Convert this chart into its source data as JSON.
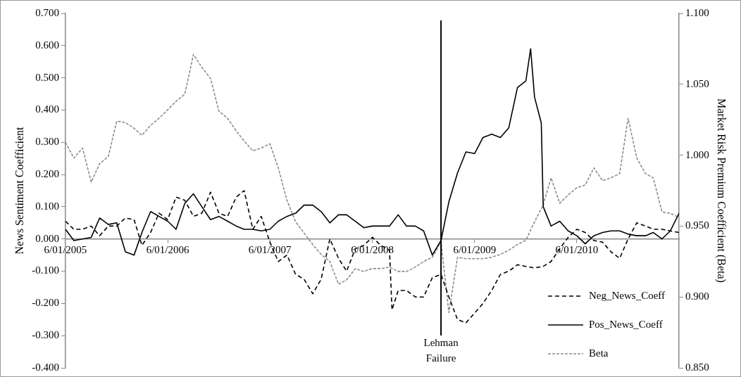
{
  "chart_data": {
    "type": "line",
    "ylabel": "News Sentiment Coefficient",
    "y2label": "Market Risk Premium Coefficient (Beta)",
    "xlim": [
      "2005-06-01",
      "2011-06-01"
    ],
    "xticks": [
      {
        "value": "2005-06-01",
        "label": "6/01/2005"
      },
      {
        "value": "2006-06-01",
        "label": "6/01/2006"
      },
      {
        "value": "2007-06-01",
        "label": "6/01/2007"
      },
      {
        "value": "2008-06-01",
        "label": "6/01/2008"
      },
      {
        "value": "2009-06-01",
        "label": "6/01/2009"
      },
      {
        "value": "2010-06-01",
        "label": "6/01/2010"
      }
    ],
    "ylim": [
      -0.4,
      0.7
    ],
    "yticks": [
      {
        "value": -0.4,
        "label": "-0.400"
      },
      {
        "value": -0.3,
        "label": "-0.300"
      },
      {
        "value": -0.2,
        "label": "-0.200"
      },
      {
        "value": -0.1,
        "label": "-0.100"
      },
      {
        "value": 0,
        "label": "0.000"
      },
      {
        "value": 0.1,
        "label": "0.100"
      },
      {
        "value": 0.2,
        "label": "0.200"
      },
      {
        "value": 0.3,
        "label": "0.300"
      },
      {
        "value": 0.4,
        "label": "0.400"
      },
      {
        "value": 0.5,
        "label": "0.500"
      },
      {
        "value": 0.6,
        "label": "0.600"
      },
      {
        "value": 0.7,
        "label": "0.700"
      }
    ],
    "y2lim": [
      0.85,
      1.1
    ],
    "y2ticks": [
      {
        "value": 0.85,
        "label": "0.850"
      },
      {
        "value": 0.9,
        "label": "0.900"
      },
      {
        "value": 0.95,
        "label": "0.950"
      },
      {
        "value": 1.0,
        "label": "1.000"
      },
      {
        "value": 1.05,
        "label": "1.050"
      },
      {
        "value": 1.1,
        "label": "1.100"
      }
    ],
    "legend": "bottom right",
    "ref_lines": [
      {
        "axis": "x",
        "value": "2009-02-01",
        "label": "Lehman Failure",
        "color": "#000000"
      }
    ],
    "series": [
      {
        "name": "Neg_News_Coeff",
        "color": "#000000",
        "line_style": "dashed",
        "x": [
          "2005-06",
          "2005-07",
          "2005-08",
          "2005-09",
          "2005-10",
          "2005-11",
          "2005-12",
          "2006-01",
          "2006-02",
          "2006-03",
          "2006-04",
          "2006-05",
          "2006-06",
          "2006-07",
          "2006-08",
          "2006-09",
          "2006-10",
          "2006-11",
          "2006-12",
          "2007-01",
          "2007-02",
          "2007-03",
          "2007-04",
          "2007-05",
          "2007-06",
          "2007-07",
          "2007-08",
          "2007-09",
          "2007-10",
          "2007-11",
          "2007-12",
          "2008-01",
          "2008-02",
          "2008-03",
          "2008-04",
          "2008-05",
          "2008-06",
          "2008-07",
          "2008-08",
          "2008-08-10",
          "2008-09",
          "2008-10",
          "2008-11",
          "2008-12",
          "2009-01",
          "2009-02",
          "2009-03",
          "2009-04",
          "2009-05",
          "2009-06",
          "2009-07",
          "2009-08",
          "2009-09",
          "2009-10",
          "2009-11",
          "2009-12",
          "2010-01",
          "2010-02",
          "2010-03",
          "2010-04",
          "2010-05",
          "2010-06",
          "2010-07",
          "2010-08",
          "2010-09",
          "2010-10",
          "2010-11",
          "2010-12",
          "2011-01",
          "2011-02",
          "2011-03",
          "2011-04",
          "2011-05",
          "2011-06"
        ],
        "values": [
          0.055,
          0.03,
          0.03,
          0.04,
          0.01,
          0.04,
          0.04,
          0.065,
          0.06,
          -0.02,
          0.02,
          0.08,
          0.06,
          0.13,
          0.12,
          0.07,
          0.08,
          0.145,
          0.08,
          0.07,
          0.13,
          0.15,
          0.03,
          0.07,
          -0.01,
          -0.07,
          -0.05,
          -0.11,
          -0.125,
          -0.17,
          -0.125,
          0.0,
          -0.06,
          -0.1,
          -0.03,
          -0.02,
          0.005,
          -0.02,
          -0.035,
          -0.22,
          -0.16,
          -0.16,
          -0.18,
          -0.18,
          -0.12,
          -0.11,
          -0.18,
          -0.25,
          -0.26,
          -0.23,
          -0.2,
          -0.16,
          -0.11,
          -0.1,
          -0.08,
          -0.085,
          -0.09,
          -0.085,
          -0.07,
          -0.03,
          0.005,
          0.03,
          0.02,
          -0.005,
          -0.01,
          -0.04,
          -0.06,
          0.0,
          0.05,
          0.04,
          0.03,
          0.03,
          0.025,
          0.02
        ]
      },
      {
        "name": "Pos_News_Coeff",
        "color": "#000000",
        "line_style": "solid",
        "x": [
          "2005-06",
          "2005-07",
          "2005-08",
          "2005-09",
          "2005-10",
          "2005-11",
          "2005-12",
          "2006-01",
          "2006-02",
          "2006-03",
          "2006-04",
          "2006-05",
          "2006-06",
          "2006-07",
          "2006-08",
          "2006-09",
          "2006-10",
          "2006-11",
          "2006-12",
          "2007-01",
          "2007-02",
          "2007-03",
          "2007-04",
          "2007-05",
          "2007-06",
          "2007-07",
          "2007-08",
          "2007-09",
          "2007-10",
          "2007-11",
          "2007-12",
          "2008-01",
          "2008-02",
          "2008-03",
          "2008-04",
          "2008-05",
          "2008-06",
          "2008-07",
          "2008-08",
          "2008-09",
          "2008-10",
          "2008-11",
          "2008-12",
          "2009-01",
          "2009-02",
          "2009-03",
          "2009-04",
          "2009-05",
          "2009-06",
          "2009-07",
          "2009-08",
          "2009-09",
          "2009-10",
          "2009-11",
          "2009-12",
          "2009-12-18",
          "2010-01",
          "2010-01-25",
          "2010-02",
          "2010-03",
          "2010-04",
          "2010-05",
          "2010-06",
          "2010-07",
          "2010-08",
          "2010-09",
          "2010-10",
          "2010-11",
          "2010-12",
          "2011-01",
          "2011-02",
          "2011-03",
          "2011-04",
          "2011-05",
          "2011-06"
        ],
        "values": [
          0.03,
          -0.005,
          0.0,
          0.005,
          0.065,
          0.045,
          0.05,
          -0.04,
          -0.05,
          0.02,
          0.085,
          0.07,
          0.055,
          0.03,
          0.11,
          0.14,
          0.1,
          0.06,
          0.07,
          0.055,
          0.04,
          0.03,
          0.03,
          0.025,
          0.03,
          0.055,
          0.07,
          0.08,
          0.105,
          0.105,
          0.085,
          0.05,
          0.075,
          0.075,
          0.055,
          0.035,
          0.04,
          0.04,
          0.04,
          0.075,
          0.04,
          0.04,
          0.025,
          -0.05,
          -0.005,
          0.115,
          0.205,
          0.27,
          0.265,
          0.315,
          0.325,
          0.315,
          0.345,
          0.47,
          0.49,
          0.59,
          0.44,
          0.36,
          0.1,
          0.04,
          0.055,
          0.025,
          0.01,
          -0.015,
          0.01,
          0.02,
          0.025,
          0.025,
          0.015,
          0.01,
          0.01,
          0.02,
          0.0,
          0.025,
          0.08
        ]
      },
      {
        "name": "Beta",
        "color": "#8c8c8c",
        "line_style": "dashed",
        "axis": "y2",
        "x": [
          "2005-06",
          "2005-07",
          "2005-08",
          "2005-09",
          "2005-10",
          "2005-11",
          "2005-12",
          "2006-01",
          "2006-02",
          "2006-03",
          "2006-04",
          "2006-05",
          "2006-06",
          "2006-07",
          "2006-08",
          "2006-09",
          "2006-10",
          "2006-11",
          "2006-12",
          "2007-01",
          "2007-02",
          "2007-03",
          "2007-04",
          "2007-05",
          "2007-06",
          "2007-07",
          "2007-08",
          "2007-09",
          "2007-10",
          "2007-11",
          "2007-12",
          "2008-01",
          "2008-02",
          "2008-03",
          "2008-04",
          "2008-05",
          "2008-06",
          "2008-07",
          "2008-08",
          "2008-09",
          "2008-10",
          "2008-11",
          "2008-12",
          "2009-01",
          "2009-02",
          "2009-03",
          "2009-04",
          "2009-05",
          "2009-06",
          "2009-07",
          "2009-08",
          "2009-09",
          "2009-10",
          "2009-11",
          "2009-12",
          "2010-01",
          "2010-02",
          "2010-03",
          "2010-04",
          "2010-05",
          "2010-06",
          "2010-07",
          "2010-08",
          "2010-09",
          "2010-10",
          "2010-11",
          "2010-12",
          "2011-01",
          "2011-02",
          "2011-03",
          "2011-04",
          "2011-05",
          "2011-06"
        ],
        "values": [
          1.009,
          0.998,
          1.005,
          0.981,
          0.994,
          0.999,
          1.024,
          1.023,
          1.019,
          1.014,
          1.021,
          1.026,
          1.032,
          1.038,
          1.043,
          1.071,
          1.062,
          1.054,
          1.031,
          1.026,
          1.017,
          1.01,
          1.003,
          1.005,
          1.008,
          0.991,
          0.968,
          0.953,
          0.945,
          0.937,
          0.93,
          0.925,
          0.909,
          0.912,
          0.92,
          0.918,
          0.92,
          0.92,
          0.921,
          0.918,
          0.918,
          0.921,
          0.925,
          0.928,
          0.939,
          0.889,
          0.928,
          0.927,
          0.927,
          0.927,
          0.928,
          0.93,
          0.933,
          0.937,
          0.94,
          0.953,
          0.965,
          0.984,
          0.966,
          0.972,
          0.977,
          0.979,
          0.991,
          0.982,
          0.984,
          0.987,
          1.026,
          0.998,
          0.987,
          0.984,
          0.96,
          0.959,
          0.956
        ]
      }
    ]
  }
}
